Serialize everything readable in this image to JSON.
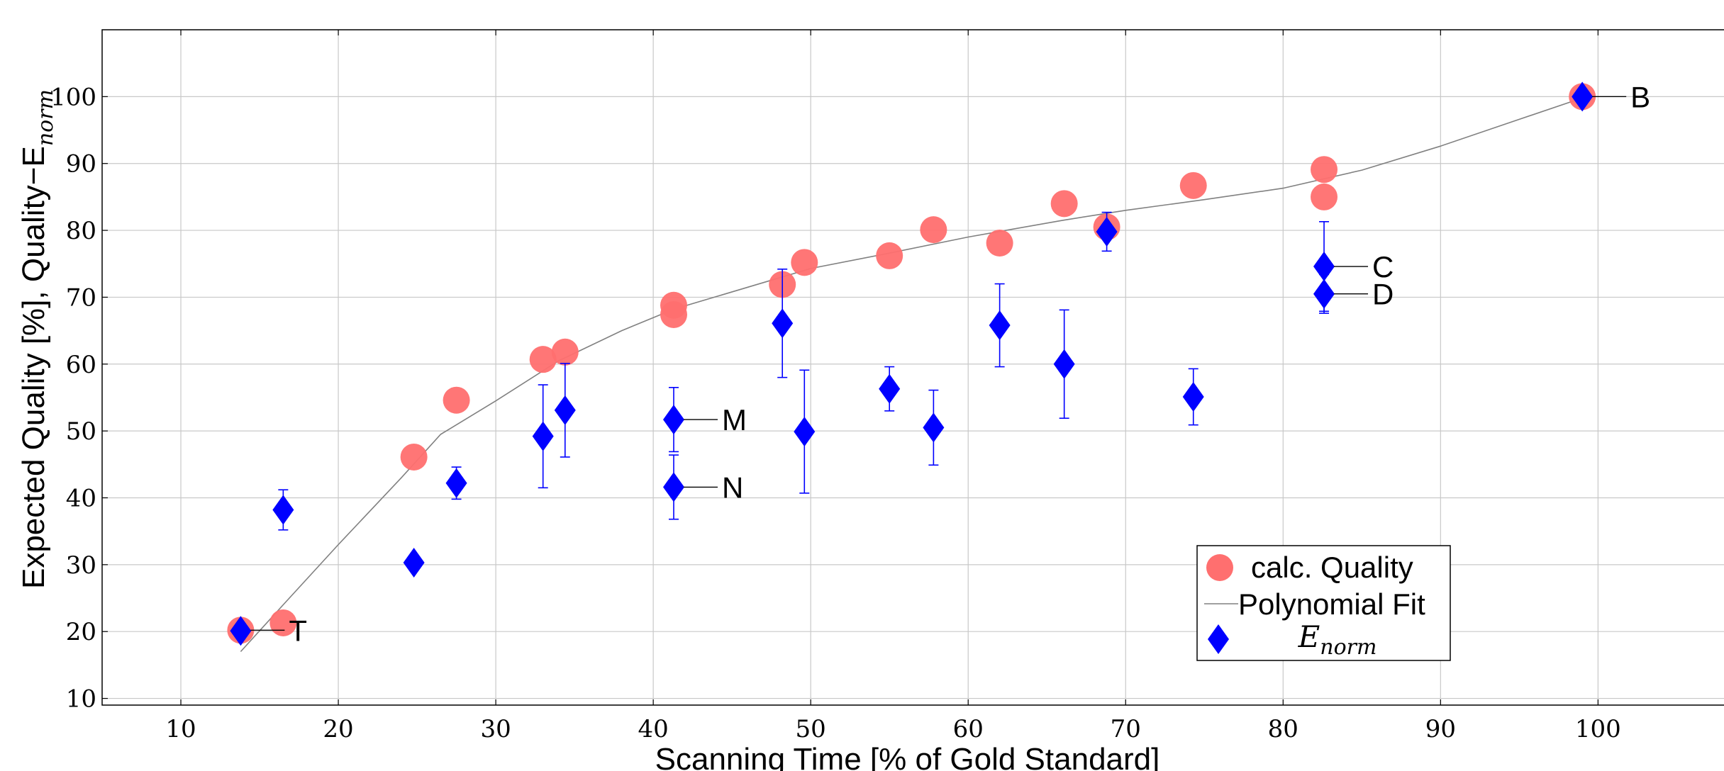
{
  "chart_data": {
    "type": "scatter",
    "xlabel": "Scanning Time [% of Gold Standard]",
    "ylabel": "Expected Quality [%], Quality−E",
    "ylabel_sub": "norm",
    "xlim": [
      5,
      108
    ],
    "ylim": [
      9,
      110
    ],
    "xticks": [
      10,
      20,
      30,
      40,
      50,
      60,
      70,
      80,
      90,
      100
    ],
    "yticks": [
      10,
      20,
      30,
      40,
      50,
      60,
      70,
      80,
      90,
      100
    ],
    "grid": true,
    "legend_position": "bottom-right",
    "legend": {
      "calc_quality": "calc. Quality",
      "fit": "Polynomial Fit",
      "enorm_main": "E",
      "enorm_sub": "norm"
    },
    "colors": {
      "calc_quality": "#ff6f6f",
      "enorm": "#0000ff",
      "fit": "#808080",
      "grid": "#c8c8c8"
    },
    "series": [
      {
        "name": "calc. Quality",
        "points": [
          {
            "x": 13.8,
            "y": 20.2
          },
          {
            "x": 16.5,
            "y": 21.3
          },
          {
            "x": 24.8,
            "y": 46.1
          },
          {
            "x": 27.5,
            "y": 54.6
          },
          {
            "x": 33.0,
            "y": 60.7
          },
          {
            "x": 34.4,
            "y": 61.8
          },
          {
            "x": 41.3,
            "y": 68.8
          },
          {
            "x": 41.3,
            "y": 67.4
          },
          {
            "x": 48.2,
            "y": 71.9
          },
          {
            "x": 49.6,
            "y": 75.2
          },
          {
            "x": 55.0,
            "y": 76.2
          },
          {
            "x": 57.8,
            "y": 80.1
          },
          {
            "x": 62.0,
            "y": 78.1
          },
          {
            "x": 66.1,
            "y": 84.0
          },
          {
            "x": 68.8,
            "y": 80.5
          },
          {
            "x": 74.3,
            "y": 86.7
          },
          {
            "x": 82.6,
            "y": 89.1
          },
          {
            "x": 82.6,
            "y": 85.0
          },
          {
            "x": 99.0,
            "y": 100.0
          }
        ]
      },
      {
        "name": "Polynomial Fit",
        "points": [
          {
            "x": 13.8,
            "y": 17.0
          },
          {
            "x": 16.5,
            "y": 24.0
          },
          {
            "x": 20.0,
            "y": 33.0
          },
          {
            "x": 24.0,
            "y": 43.0
          },
          {
            "x": 26.5,
            "y": 49.5
          },
          {
            "x": 30.0,
            "y": 54.5
          },
          {
            "x": 34.0,
            "y": 60.5
          },
          {
            "x": 38.0,
            "y": 65.0
          },
          {
            "x": 41.3,
            "y": 68.2
          },
          {
            "x": 46.0,
            "y": 71.5
          },
          {
            "x": 50.0,
            "y": 74.3
          },
          {
            "x": 55.0,
            "y": 76.6
          },
          {
            "x": 60.0,
            "y": 79.0
          },
          {
            "x": 66.0,
            "y": 81.5
          },
          {
            "x": 70.0,
            "y": 83.0
          },
          {
            "x": 75.0,
            "y": 84.6
          },
          {
            "x": 80.0,
            "y": 86.3
          },
          {
            "x": 85.0,
            "y": 89.0
          },
          {
            "x": 90.0,
            "y": 92.6
          },
          {
            "x": 95.0,
            "y": 96.6
          },
          {
            "x": 99.0,
            "y": 99.8
          }
        ]
      },
      {
        "name": "E_norm",
        "points": [
          {
            "x": 13.8,
            "y": 20.1,
            "err": 0
          },
          {
            "x": 16.5,
            "y": 38.2,
            "err": 3.0
          },
          {
            "x": 24.8,
            "y": 30.3,
            "err": 0
          },
          {
            "x": 27.5,
            "y": 42.2,
            "err": 2.4
          },
          {
            "x": 33.0,
            "y": 49.2,
            "err": 7.7
          },
          {
            "x": 34.4,
            "y": 53.1,
            "err": 7.0
          },
          {
            "x": 41.3,
            "y": 51.7,
            "err": 4.8
          },
          {
            "x": 41.3,
            "y": 41.6,
            "err": 4.8
          },
          {
            "x": 48.2,
            "y": 66.1,
            "err": 8.1
          },
          {
            "x": 49.6,
            "y": 49.9,
            "err": 9.2
          },
          {
            "x": 55.0,
            "y": 56.3,
            "err": 3.3
          },
          {
            "x": 57.8,
            "y": 50.5,
            "err": 5.6
          },
          {
            "x": 62.0,
            "y": 65.8,
            "err": 6.2
          },
          {
            "x": 66.1,
            "y": 60.0,
            "err": 8.1
          },
          {
            "x": 68.8,
            "y": 79.8,
            "err": 2.9
          },
          {
            "x": 74.3,
            "y": 55.1,
            "err": 4.2
          },
          {
            "x": 82.6,
            "y": 74.6,
            "err": 6.7
          },
          {
            "x": 82.6,
            "y": 70.5,
            "err": 2.9
          },
          {
            "x": 99.0,
            "y": 100.0,
            "err": 0
          }
        ]
      }
    ],
    "annotations": [
      {
        "text": "T",
        "x": 13.8,
        "y": 20.2
      },
      {
        "text": "M",
        "x": 41.3,
        "y": 51.7
      },
      {
        "text": "N",
        "x": 41.3,
        "y": 41.6
      },
      {
        "text": "C",
        "x": 82.6,
        "y": 74.6
      },
      {
        "text": "D",
        "x": 82.6,
        "y": 70.5
      },
      {
        "text": "B",
        "x": 99.0,
        "y": 100.0
      }
    ]
  }
}
